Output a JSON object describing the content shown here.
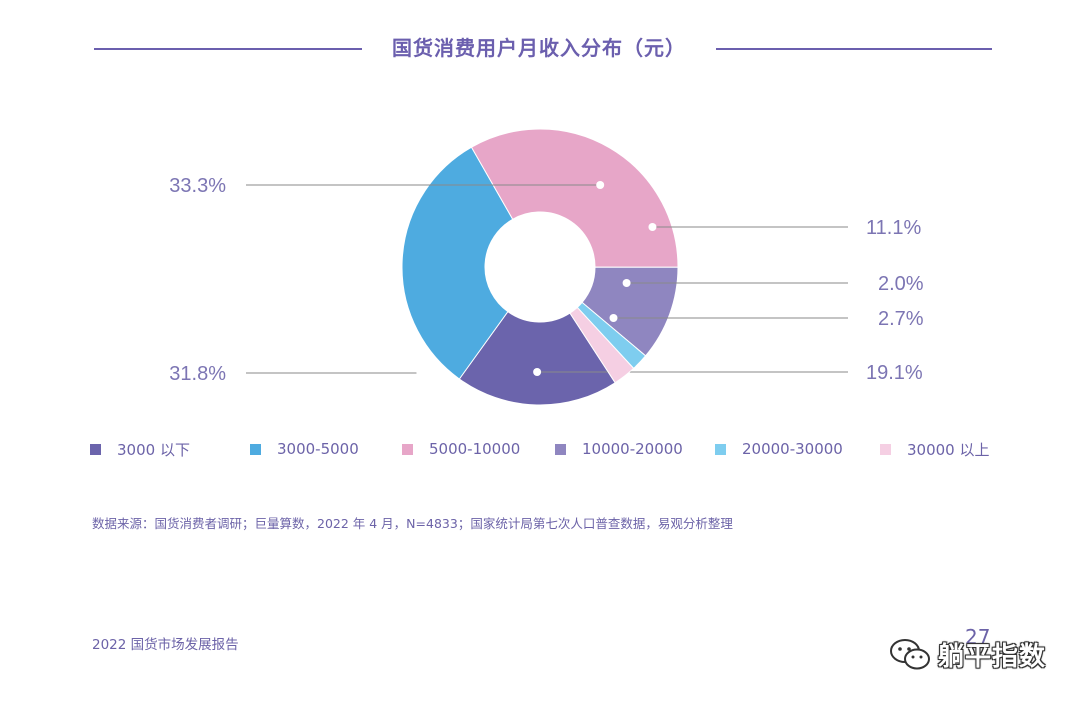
{
  "chart_data": {
    "type": "donut",
    "title": "国货消费用户月收入分布（元）",
    "categories": [
      "3000 以下",
      "3000-5000",
      "5000-10000",
      "10000-20000",
      "20000-30000",
      "30000 以上"
    ],
    "values": [
      19.1,
      31.8,
      33.3,
      11.1,
      2.0,
      2.7
    ],
    "value_labels": [
      "19.1%",
      "31.8%",
      "33.3%",
      "11.1%",
      "2.0%",
      "2.7%"
    ],
    "colors": [
      "#6b64ac",
      "#4eabe0",
      "#e7a6c8",
      "#8f86c0",
      "#7ecdef",
      "#f5cfe3"
    ],
    "legend_position": "bottom"
  },
  "source_text": "数据来源：国货消费者调研；巨量算数，2022 年 4 月，N=4833；国家统计局第七次人口普查数据，易观分析整理",
  "footer_text": "2022 国货市场发展报告",
  "page_number": "27",
  "watermark": {
    "icon": "wechat-icon",
    "text": "躺平指数"
  }
}
